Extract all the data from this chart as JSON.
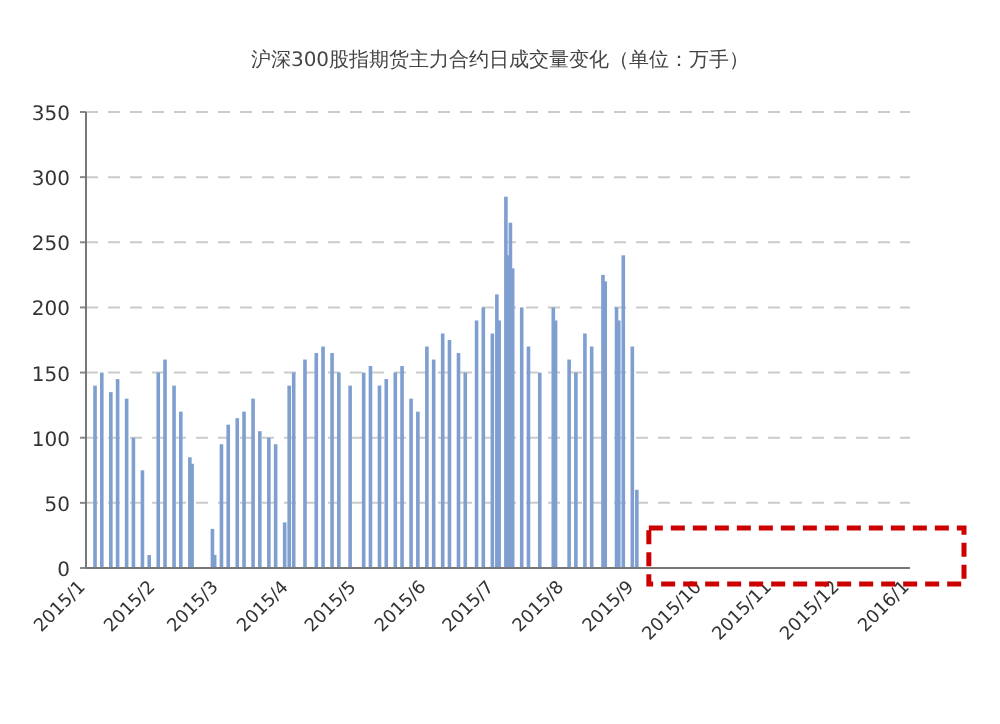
{
  "chart_data": {
    "type": "bar",
    "title": "沪深300股指期货主力合约日成交量变化（单位：万手）",
    "x": [
      "2015-01-05",
      "2015-01-08",
      "2015-01-12",
      "2015-01-15",
      "2015-01-19",
      "2015-01-22",
      "2015-01-26",
      "2015-01-29",
      "2015-02-02",
      "2015-02-05",
      "2015-02-09",
      "2015-02-12",
      "2015-02-16",
      "2015-02-17",
      "2015-02-26",
      "2015-02-27",
      "2015-03-02",
      "2015-03-05",
      "2015-03-09",
      "2015-03-12",
      "2015-03-16",
      "2015-03-19",
      "2015-03-23",
      "2015-03-26",
      "2015-03-30",
      "2015-04-01",
      "2015-04-03",
      "2015-04-08",
      "2015-04-13",
      "2015-04-16",
      "2015-04-20",
      "2015-04-23",
      "2015-04-28",
      "2015-05-04",
      "2015-05-07",
      "2015-05-11",
      "2015-05-14",
      "2015-05-18",
      "2015-05-21",
      "2015-05-25",
      "2015-05-28",
      "2015-06-01",
      "2015-06-04",
      "2015-06-08",
      "2015-06-11",
      "2015-06-15",
      "2015-06-18",
      "2015-06-23",
      "2015-06-26",
      "2015-06-30",
      "2015-07-02",
      "2015-07-03",
      "2015-07-06",
      "2015-07-07",
      "2015-07-08",
      "2015-07-09",
      "2015-07-13",
      "2015-07-16",
      "2015-07-21",
      "2015-07-27",
      "2015-07-28",
      "2015-08-03",
      "2015-08-06",
      "2015-08-10",
      "2015-08-13",
      "2015-08-18",
      "2015-08-19",
      "2015-08-24",
      "2015-08-25",
      "2015-08-27",
      "2015-08-31",
      "2015-09-02"
    ],
    "values": [
      140,
      150,
      135,
      145,
      130,
      100,
      75,
      10,
      150,
      160,
      140,
      120,
      85,
      80,
      30,
      10,
      95,
      110,
      115,
      120,
      130,
      105,
      100,
      95,
      35,
      140,
      150,
      160,
      165,
      170,
      165,
      150,
      140,
      150,
      155,
      140,
      145,
      150,
      155,
      130,
      120,
      170,
      160,
      180,
      175,
      165,
      150,
      190,
      200,
      180,
      210,
      190,
      285,
      240,
      265,
      230,
      200,
      170,
      150,
      200,
      190,
      160,
      150,
      180,
      170,
      225,
      220,
      200,
      190,
      240,
      170,
      60
    ],
    "color": "#7f9fd0",
    "xlim": [
      "2015-01-01",
      "2016-01-01"
    ],
    "xticks": [
      {
        "value": "2015-01-01",
        "label": "2015/1"
      },
      {
        "value": "2015-02-01",
        "label": "2015/2"
      },
      {
        "value": "2015-03-01",
        "label": "2015/3"
      },
      {
        "value": "2015-04-01",
        "label": "2015/4"
      },
      {
        "value": "2015-05-01",
        "label": "2015/5"
      },
      {
        "value": "2015-06-01",
        "label": "2015/6"
      },
      {
        "value": "2015-07-01",
        "label": "2015/7"
      },
      {
        "value": "2015-08-01",
        "label": "2015/8"
      },
      {
        "value": "2015-09-01",
        "label": "2015/9"
      },
      {
        "value": "2015-10-01",
        "label": "2015/10"
      },
      {
        "value": "2015-11-01",
        "label": "2015/11"
      },
      {
        "value": "2015-12-01",
        "label": "2015/12"
      },
      {
        "value": "2016-01-01",
        "label": "2016/1"
      }
    ],
    "ylim": [
      0,
      350
    ],
    "yticks": [
      0,
      50,
      100,
      150,
      200,
      250,
      300,
      350
    ],
    "grid": "y"
  }
}
